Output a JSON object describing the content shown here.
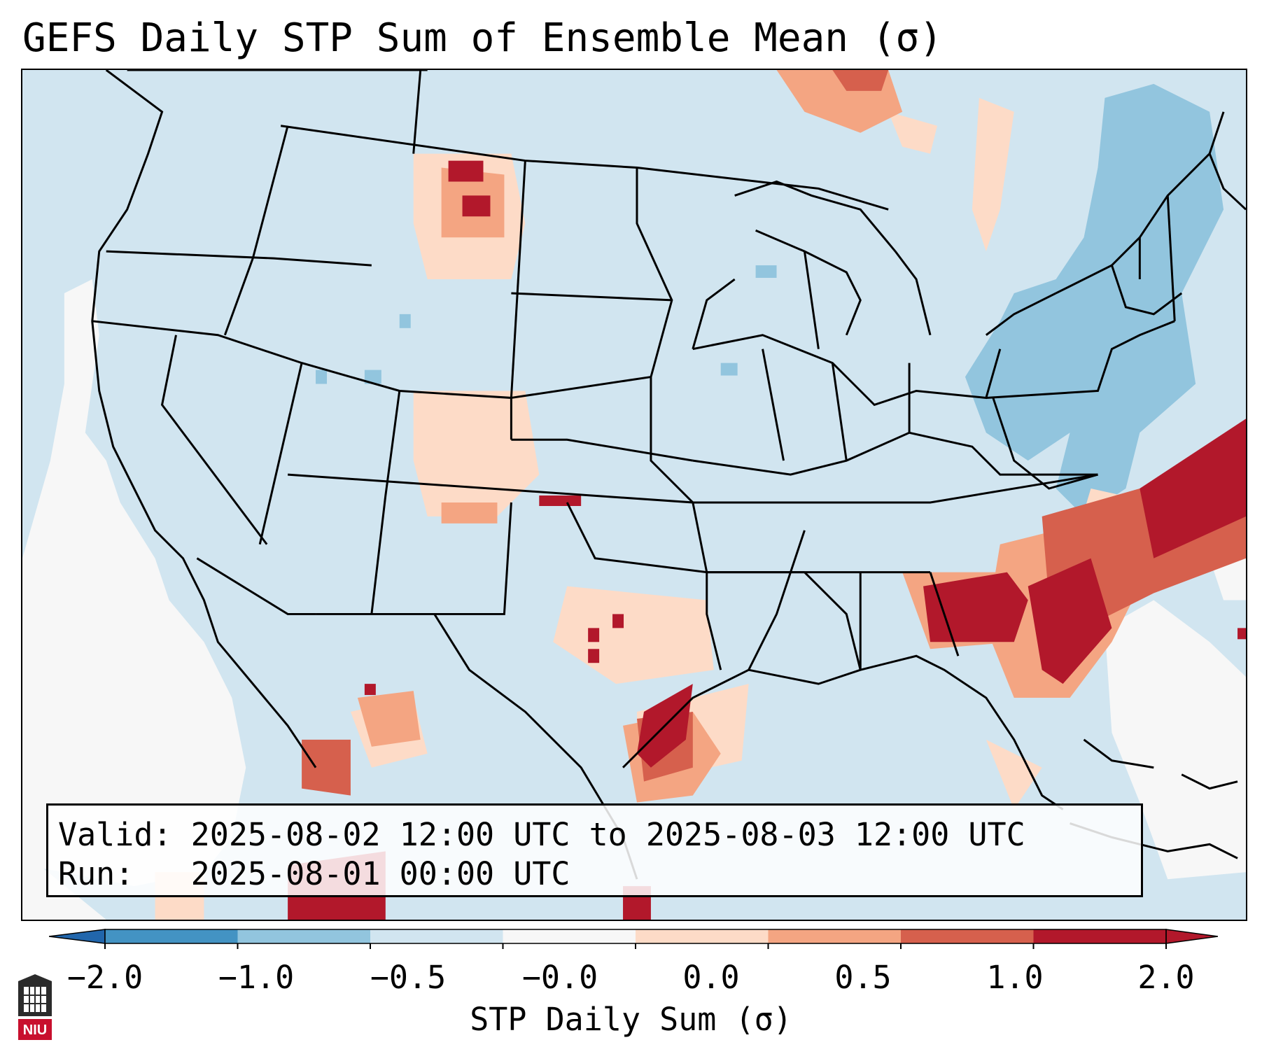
{
  "title": "GEFS Daily STP Sum of Ensemble Mean (σ)",
  "info": {
    "valid_line": "Valid: 2025-08-02 12:00 UTC to 2025-08-03 12:00 UTC",
    "run_line": "Run:   2025-08-01 00:00 UTC"
  },
  "colorbar": {
    "label": "STP Daily Sum (σ)",
    "ticks": [
      "−2.0",
      "−1.0",
      "−0.5",
      "−0.0",
      "0.0",
      "0.5",
      "1.0",
      "2.0"
    ],
    "colors": [
      "#4393c3",
      "#92c5de",
      "#d1e5f0",
      "#f7f7f7",
      "#fddbc7",
      "#f4a582",
      "#d6604d",
      "#b2182b"
    ],
    "extend_low_color": "#2166ac",
    "extend_high_color": "#b2182b"
  },
  "map": {
    "background_color": "#d1e5f0",
    "outline_color": "#000000",
    "region": "Contiguous United States"
  },
  "logo": {
    "text": "NIU",
    "color": "#c8102e"
  }
}
